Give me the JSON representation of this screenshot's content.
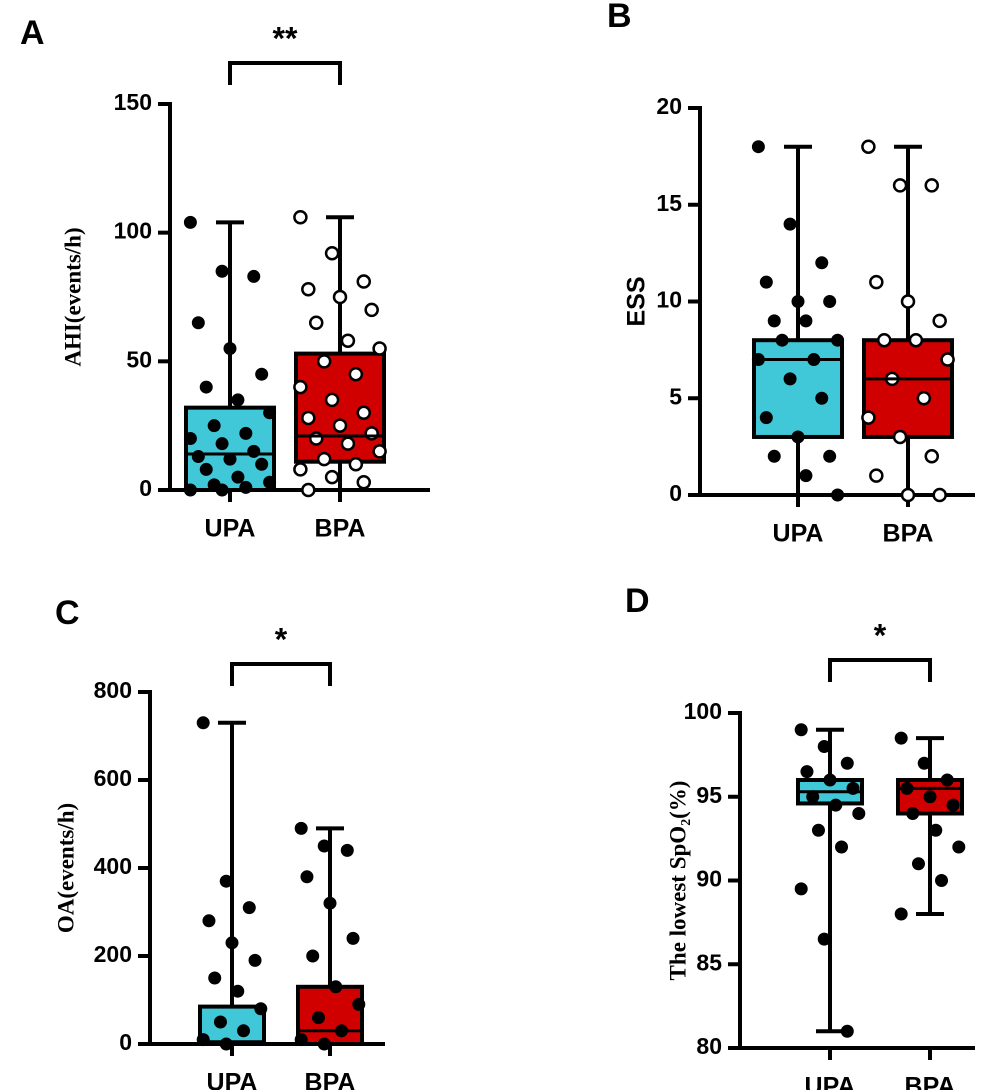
{
  "chart_data": [
    {
      "type": "box",
      "panel": "A",
      "ylabel": "AHI(events/h)",
      "significance": "**",
      "categories": [
        "UPA",
        "BPA"
      ],
      "ylim": [
        0,
        150
      ],
      "yticks": [
        0,
        50,
        100,
        150
      ],
      "series": [
        {
          "name": "UPA",
          "color": "#40c8d8",
          "marker": "filled",
          "min": 0,
          "q1": 0,
          "median": 14,
          "q3": 32,
          "max": 104,
          "points": [
            104,
            85,
            83,
            65,
            55,
            45,
            40,
            35,
            30,
            25,
            22,
            20,
            18,
            15,
            13,
            12,
            10,
            8,
            5,
            3,
            2,
            1,
            0,
            0
          ]
        },
        {
          "name": "BPA",
          "color": "#d00000",
          "marker": "open",
          "min": 0,
          "q1": 11,
          "median": 21,
          "q3": 53,
          "max": 106,
          "points": [
            106,
            92,
            81,
            78,
            75,
            70,
            65,
            58,
            55,
            50,
            45,
            40,
            35,
            30,
            28,
            25,
            22,
            20,
            18,
            15,
            12,
            10,
            8,
            5,
            3,
            0
          ]
        }
      ]
    },
    {
      "type": "box",
      "panel": "B",
      "ylabel": "ESS",
      "categories": [
        "UPA",
        "BPA"
      ],
      "ylim": [
        0,
        20
      ],
      "yticks": [
        0,
        5,
        10,
        15,
        20
      ],
      "series": [
        {
          "name": "UPA",
          "color": "#40c8d8",
          "marker": "filled",
          "min": 0,
          "q1": 3,
          "median": 7,
          "q3": 8,
          "max": 18,
          "points": [
            18,
            14,
            12,
            11,
            10,
            10,
            9,
            9,
            8,
            8,
            7,
            7,
            6,
            5,
            4,
            3,
            2,
            2,
            1,
            0
          ]
        },
        {
          "name": "BPA",
          "color": "#d00000",
          "marker": "open",
          "min": 0,
          "q1": 3,
          "median": 6,
          "q3": 8,
          "max": 18,
          "points": [
            18,
            16,
            16,
            11,
            10,
            9,
            8,
            8,
            7,
            6,
            5,
            4,
            3,
            2,
            1,
            0,
            0
          ]
        }
      ]
    },
    {
      "type": "box",
      "panel": "C",
      "ylabel": "OA(events/h)",
      "significance": "*",
      "categories": [
        "UPA",
        "BPA"
      ],
      "ylim": [
        0,
        800
      ],
      "yticks": [
        0,
        200,
        400,
        600,
        800
      ],
      "series": [
        {
          "name": "UPA",
          "color": "#40c8d8",
          "marker": "filled",
          "min": 0,
          "q1": 0,
          "median": 5,
          "q3": 85,
          "max": 730,
          "points": [
            730,
            370,
            310,
            280,
            230,
            190,
            150,
            120,
            80,
            50,
            30,
            10,
            0
          ]
        },
        {
          "name": "BPA",
          "color": "#d00000",
          "marker": "filled",
          "min": 0,
          "q1": 0,
          "median": 30,
          "q3": 130,
          "max": 490,
          "points": [
            490,
            450,
            440,
            380,
            320,
            240,
            200,
            130,
            90,
            60,
            30,
            10,
            0
          ]
        }
      ]
    },
    {
      "type": "box",
      "panel": "D",
      "ylabel": "The lowest SpO₂(%)",
      "significance": "*",
      "categories": [
        "UPA",
        "BPA"
      ],
      "ylim": [
        80,
        100
      ],
      "yticks": [
        80,
        85,
        90,
        95,
        100
      ],
      "series": [
        {
          "name": "UPA",
          "color": "#40c8d8",
          "marker": "filled",
          "min": 81,
          "q1": 94.6,
          "median": 95.3,
          "q3": 96,
          "max": 99,
          "points": [
            99,
            98,
            97,
            96.5,
            96,
            95.5,
            95,
            94.5,
            94,
            93,
            92,
            89.5,
            86.5,
            81
          ]
        },
        {
          "name": "BPA",
          "color": "#d00000",
          "marker": "filled",
          "min": 88,
          "q1": 94,
          "median": 95.5,
          "q3": 96,
          "max": 98.5,
          "points": [
            98.5,
            97,
            96,
            95.5,
            95,
            94.5,
            94,
            93,
            92,
            91,
            90,
            88
          ]
        }
      ]
    }
  ]
}
